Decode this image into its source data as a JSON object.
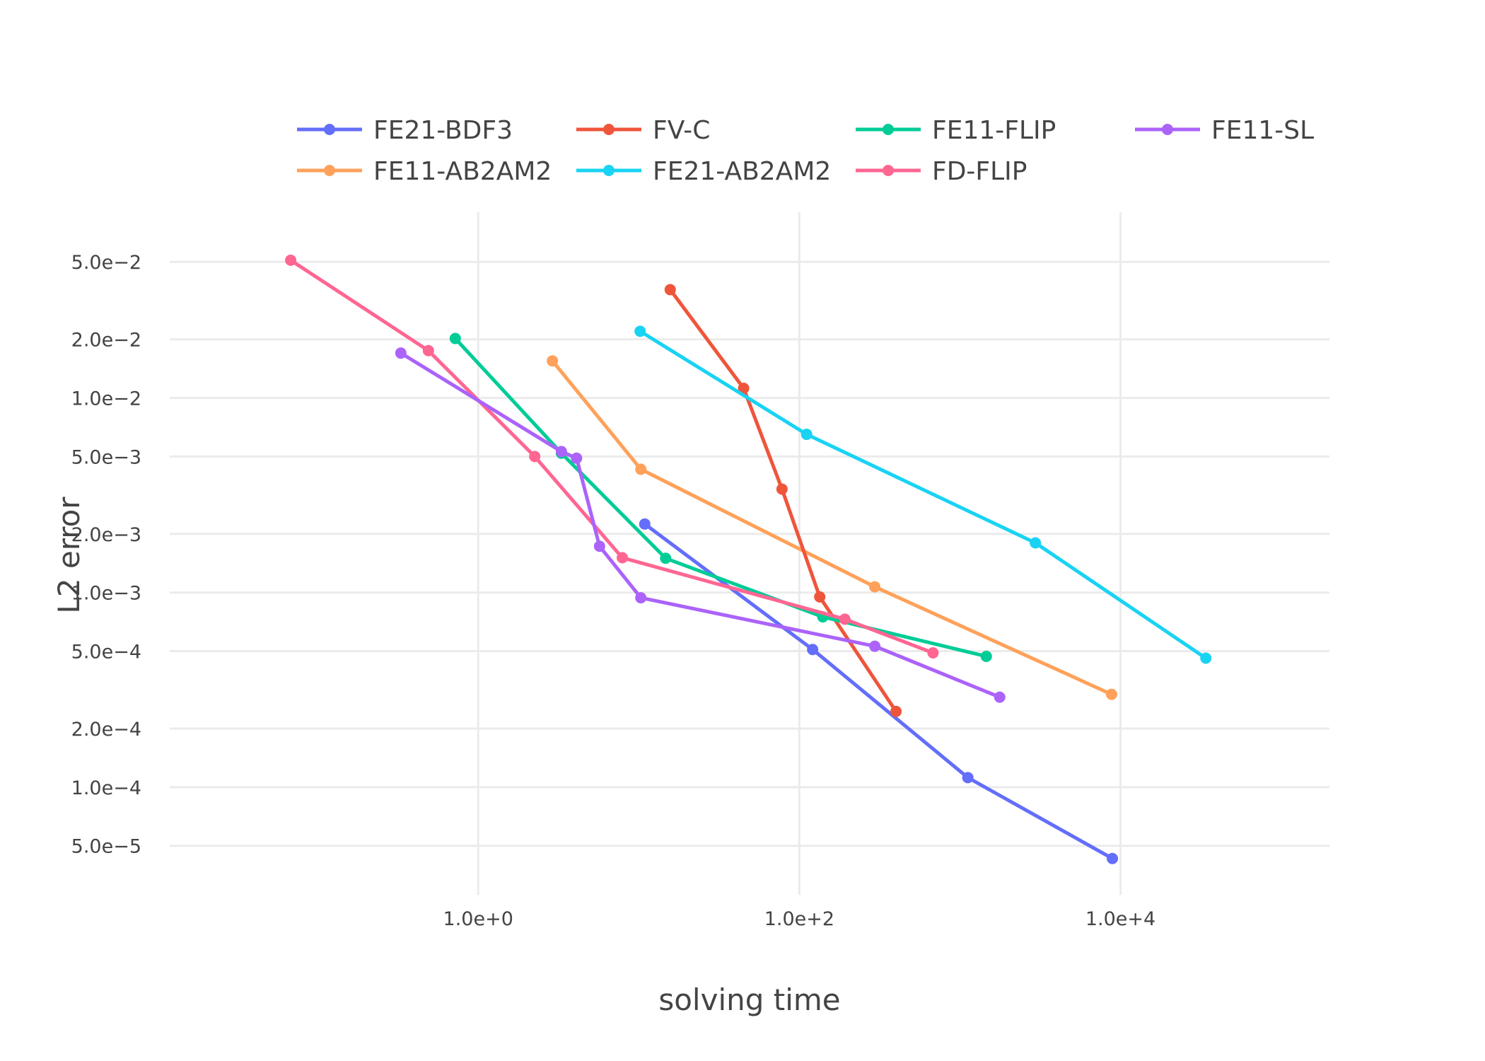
{
  "chart_data": {
    "type": "line",
    "xlabel": "solving time",
    "ylabel": "L2 error",
    "x_scale": "log",
    "y_scale": "log",
    "xlim": [
      0.012,
      200000
    ],
    "ylim": [
      2.8e-05,
      0.09
    ],
    "x_ticks": [
      {
        "value": 1,
        "label": "1.0e+0"
      },
      {
        "value": 100,
        "label": "1.0e+2"
      },
      {
        "value": 10000,
        "label": "1.0e+4"
      }
    ],
    "y_ticks": [
      {
        "value": 0.05,
        "label": "5.0e−2"
      },
      {
        "value": 0.02,
        "label": "2.0e−2"
      },
      {
        "value": 0.01,
        "label": "1.0e−2"
      },
      {
        "value": 0.005,
        "label": "5.0e−3"
      },
      {
        "value": 0.002,
        "label": "2.0e−3"
      },
      {
        "value": 0.001,
        "label": "1.0e−3"
      },
      {
        "value": 0.0005,
        "label": "5.0e−4"
      },
      {
        "value": 0.0002,
        "label": "2.0e−4"
      },
      {
        "value": 0.0001,
        "label": "1.0e−4"
      },
      {
        "value": 5e-05,
        "label": "5.0e−5"
      }
    ],
    "grid": true,
    "legend_position": "top",
    "series": [
      {
        "name": "FE21-BDF3",
        "color": "#636efa",
        "x": [
          10.9,
          121,
          1120,
          8900
        ],
        "y": [
          0.00225,
          0.00051,
          0.000112,
          4.3e-05
        ]
      },
      {
        "name": "FE11-AB2AM2",
        "color": "#ffa15a",
        "x": [
          2.9,
          10.3,
          295,
          8800
        ],
        "y": [
          0.0155,
          0.0043,
          0.00107,
          0.0003
        ]
      },
      {
        "name": "FV-C",
        "color": "#ef553b",
        "x": [
          15.7,
          45,
          78,
          134,
          400
        ],
        "y": [
          0.036,
          0.0112,
          0.0034,
          0.00095,
          0.000245
        ]
      },
      {
        "name": "FE21-AB2AM2",
        "color": "#19d3f3",
        "x": [
          10.2,
          111,
          2950,
          34000
        ],
        "y": [
          0.022,
          0.0065,
          0.0018,
          0.00046
        ]
      },
      {
        "name": "FE11-FLIP",
        "color": "#00cc96",
        "x": [
          0.72,
          3.3,
          14.7,
          140,
          1460
        ],
        "y": [
          0.0202,
          0.0052,
          0.0015,
          0.00075,
          0.00047
        ]
      },
      {
        "name": "FD-FLIP",
        "color": "#ff6692",
        "x": [
          0.068,
          0.49,
          2.25,
          7.9,
          192,
          680
        ],
        "y": [
          0.051,
          0.0175,
          0.005,
          0.00151,
          0.00073,
          0.00049
        ]
      },
      {
        "name": "FE11-SL",
        "color": "#ab63fa",
        "x": [
          0.33,
          3.3,
          4.1,
          5.7,
          10.3,
          295,
          1770
        ],
        "y": [
          0.017,
          0.0053,
          0.0049,
          0.00173,
          0.00094,
          0.00053,
          0.00029
        ]
      }
    ]
  }
}
